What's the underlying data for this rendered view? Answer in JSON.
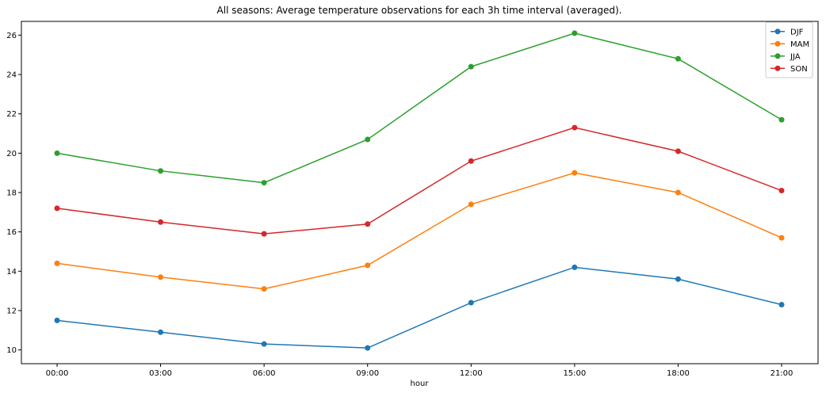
{
  "chart_data": {
    "type": "line",
    "title": "All seasons: Average temperature observations for each 3h time interval (averaged).",
    "xlabel": "hour",
    "ylabel": "",
    "categories": [
      "00:00",
      "03:00",
      "06:00",
      "09:00",
      "12:00",
      "15:00",
      "18:00",
      "21:00"
    ],
    "yticks": [
      10,
      12,
      14,
      16,
      18,
      20,
      22,
      24,
      26
    ],
    "ylim": [
      9.3,
      26.7
    ],
    "grid": false,
    "legend_position": "top-right",
    "markers": true,
    "series": [
      {
        "name": "DJF",
        "color": "#1f77b4",
        "values": [
          11.5,
          10.9,
          10.3,
          10.1,
          12.4,
          14.2,
          13.6,
          12.3
        ]
      },
      {
        "name": "MAM",
        "color": "#ff7f0e",
        "values": [
          14.4,
          13.7,
          13.1,
          14.3,
          17.4,
          19.0,
          18.0,
          15.7
        ]
      },
      {
        "name": "JJA",
        "color": "#2ca02c",
        "values": [
          20.0,
          19.1,
          18.5,
          20.7,
          24.4,
          26.1,
          24.8,
          21.7
        ]
      },
      {
        "name": "SON",
        "color": "#d62728",
        "values": [
          17.2,
          16.5,
          15.9,
          16.4,
          19.6,
          21.3,
          20.1,
          18.1
        ]
      }
    ]
  }
}
